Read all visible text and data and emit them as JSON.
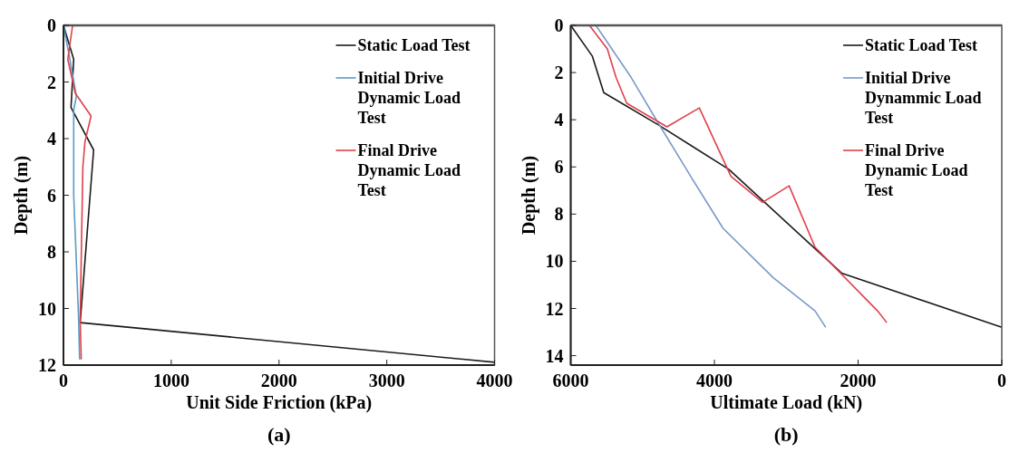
{
  "chart_data": [
    {
      "type": "line",
      "title": "(a)",
      "xlabel": "Unit Side Friction (kPa)",
      "ylabel": "Depth (m)",
      "xlim": [
        0,
        4000
      ],
      "xticks": [
        0,
        1000,
        2000,
        3000,
        4000
      ],
      "ylim": [
        12,
        0
      ],
      "yticks": [
        0,
        2,
        4,
        6,
        8,
        10,
        12
      ],
      "legend": "top right",
      "series": [
        {
          "name": "Static Load Test",
          "color": "#1a1a1a",
          "x": [
            0,
            95,
            70,
            280,
            155,
            4000
          ],
          "values": [
            0,
            1.2,
            2.9,
            4.4,
            10.5,
            11.9
          ]
        },
        {
          "name": "Initial Drive Dynamic Load Test",
          "color": "#5a9ac8",
          "x": [
            0,
            50,
            120,
            95,
            95,
            140,
            150
          ],
          "values": [
            0,
            1.0,
            2.5,
            3.0,
            6.0,
            10.3,
            11.8
          ]
        },
        {
          "name": "Final Drive Dynamic Load Test",
          "color": "#e0404a",
          "x": [
            85,
            40,
            110,
            256,
            200,
            180,
            155,
            165
          ],
          "values": [
            0,
            1.2,
            2.4,
            3.2,
            4.1,
            5.0,
            10.4,
            11.8
          ]
        }
      ]
    },
    {
      "type": "line",
      "title": "(b)",
      "xlabel": "Ultimate Load (kN)",
      "ylabel": "Depth (m)",
      "xlim": [
        6000,
        0
      ],
      "xticks": [
        6000,
        4000,
        2000,
        0
      ],
      "ylim": [
        14.4,
        0
      ],
      "yticks": [
        0,
        2,
        4,
        6,
        8,
        10,
        12,
        14
      ],
      "legend": "top right",
      "series": [
        {
          "name": "Static Load Test",
          "color": "#1a1a1a",
          "x": [
            6000,
            5700,
            5540,
            4790,
            3800,
            2230,
            0
          ],
          "values": [
            0,
            1.3,
            2.85,
            4.2,
            6.1,
            10.5,
            12.8
          ]
        },
        {
          "name": "Initial Drive Dynammic Load Test",
          "color": "#7a9ac8",
          "x": [
            5650,
            5160,
            4790,
            4330,
            3880,
            3180,
            2600,
            2450
          ],
          "values": [
            0,
            2.2,
            4.1,
            6.4,
            8.6,
            10.7,
            12.1,
            12.8
          ]
        },
        {
          "name": "Final Drive Dynamic Load Test",
          "color": "#e0404a",
          "x": [
            5740,
            5490,
            5370,
            5220,
            4660,
            4210,
            3770,
            3330,
            2960,
            2600,
            1730,
            1600
          ],
          "values": [
            0,
            1.0,
            2.2,
            3.3,
            4.3,
            3.5,
            6.4,
            7.5,
            6.8,
            9.4,
            12.1,
            12.6
          ]
        }
      ]
    }
  ]
}
